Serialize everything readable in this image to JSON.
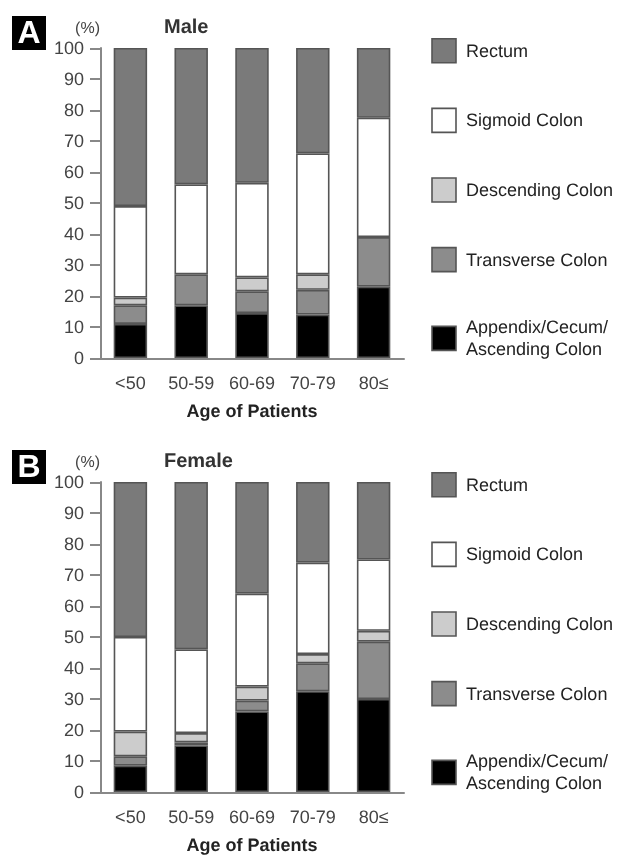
{
  "chart_data": [
    {
      "type": "bar",
      "title": "Male",
      "xlabel": "Age of Patients",
      "ylabel": "(%)",
      "annotations": [
        "A"
      ],
      "categories": [
        "<50",
        "50-59",
        "60-69",
        "70-79",
        "80≤"
      ],
      "stacked": true,
      "ylim": [
        0,
        100
      ],
      "yticks": [
        0,
        10,
        20,
        30,
        40,
        50,
        60,
        70,
        80,
        90,
        100
      ],
      "grid": false,
      "legend": "right",
      "series": [
        {
          "name": "Appendix/Cecum/ Ascending Colon",
          "color": "#000000",
          "values": [
            11,
            17,
            14.5,
            14,
            23
          ]
        },
        {
          "name": "Transverse Colon",
          "color": "#8c8c8c",
          "values": [
            6,
            10,
            7,
            8,
            16
          ]
        },
        {
          "name": "Descending Colon",
          "color": "#cccccc",
          "values": [
            2.5,
            0,
            4.5,
            5,
            0
          ]
        },
        {
          "name": "Sigmoid Colon",
          "color": "#ffffff",
          "values": [
            29.5,
            29,
            30.5,
            39,
            38.5
          ]
        },
        {
          "name": "Rectum",
          "color": "#7a7a7a",
          "values": [
            51,
            44,
            43.5,
            34,
            22.5
          ]
        }
      ]
    },
    {
      "type": "bar",
      "title": "Female",
      "xlabel": "Age of Patients",
      "ylabel": "(%)",
      "annotations": [
        "B"
      ],
      "categories": [
        "<50",
        "50-59",
        "60-69",
        "70-79",
        "80≤"
      ],
      "stacked": true,
      "ylim": [
        0,
        100
      ],
      "yticks": [
        0,
        10,
        20,
        30,
        40,
        50,
        60,
        70,
        80,
        90,
        100
      ],
      "grid": false,
      "legend": "right",
      "series": [
        {
          "name": "Appendix/Cecum/ Ascending Colon",
          "color": "#000000",
          "values": [
            8.5,
            15,
            26,
            32.5,
            30
          ]
        },
        {
          "name": "Transverse Colon",
          "color": "#8c8c8c",
          "values": [
            3,
            1,
            3.5,
            9,
            18.5
          ]
        },
        {
          "name": "Descending Colon",
          "color": "#cccccc",
          "values": [
            8,
            3,
            4.5,
            3,
            3.5
          ]
        },
        {
          "name": "Sigmoid Colon",
          "color": "#ffffff",
          "values": [
            30.5,
            27,
            30,
            29.5,
            23
          ]
        },
        {
          "name": "Rectum",
          "color": "#7a7a7a",
          "values": [
            50,
            54,
            36,
            26,
            25
          ]
        }
      ]
    }
  ]
}
